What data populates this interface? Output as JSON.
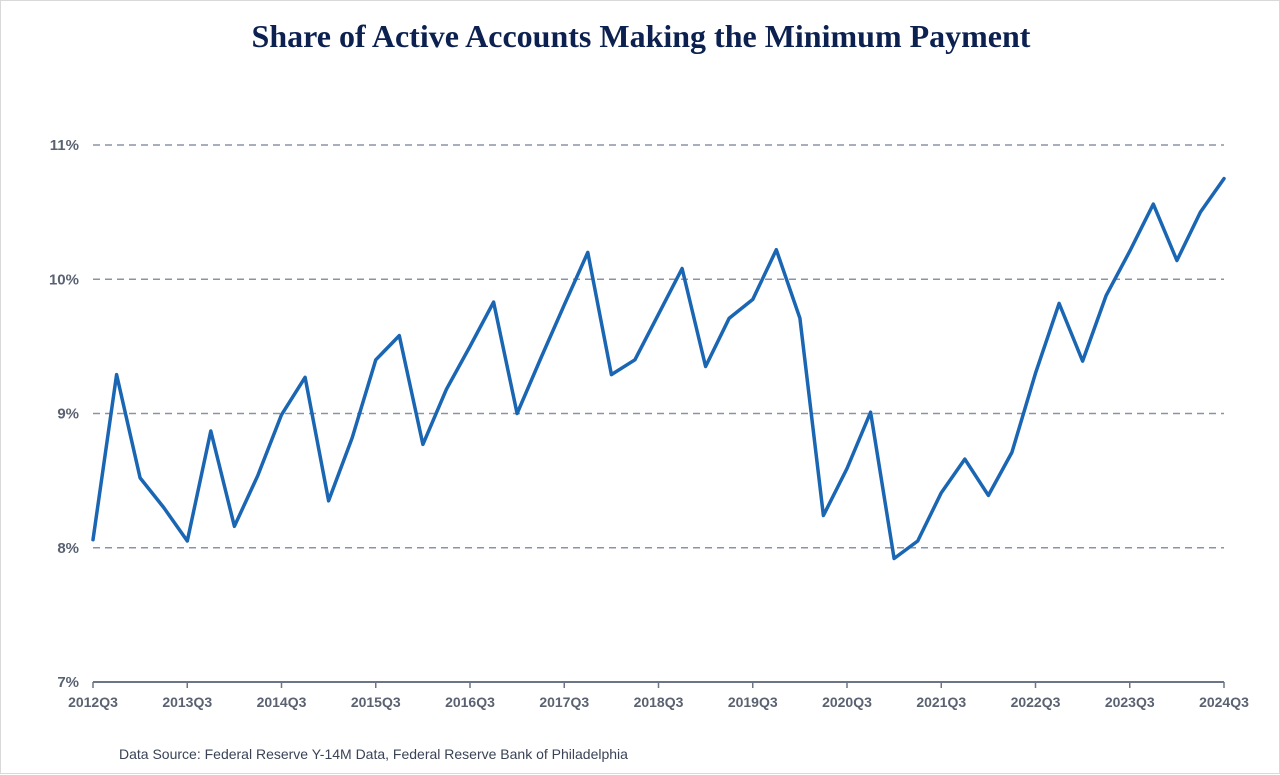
{
  "chart_data": {
    "type": "line",
    "title": "Share of Active Accounts Making the Minimum Payment",
    "xlabel": "",
    "ylabel": "",
    "ylim": [
      7,
      11
    ],
    "yticks": [
      7,
      8,
      9,
      10,
      11
    ],
    "ytick_labels": [
      "7%",
      "8%",
      "9%",
      "10%",
      "11%"
    ],
    "grid": true,
    "x_tick_labels": [
      "2012Q3",
      "2013Q3",
      "2014Q3",
      "2015Q3",
      "2016Q3",
      "2017Q3",
      "2018Q3",
      "2019Q3",
      "2020Q3",
      "2021Q3",
      "2022Q3",
      "2023Q3",
      "2024Q3"
    ],
    "series": [
      {
        "name": "Share of Active Accounts Making the Minimum Payment",
        "color": "#1a66b3",
        "values": [
          8.06,
          9.29,
          8.52,
          8.3,
          8.05,
          8.87,
          8.16,
          8.54,
          8.99,
          9.27,
          8.35,
          8.82,
          9.4,
          9.58,
          8.77,
          9.18,
          9.5,
          9.83,
          9.0,
          9.41,
          9.81,
          10.2,
          9.29,
          9.4,
          9.74,
          10.08,
          9.35,
          9.71,
          9.85,
          10.22,
          9.71,
          8.24,
          8.59,
          9.01,
          7.92,
          8.05,
          8.41,
          8.66,
          8.39,
          8.71,
          9.3,
          9.82,
          9.39,
          9.88,
          10.21,
          10.56,
          10.14,
          10.5,
          10.75
        ]
      }
    ],
    "source": "Data Source: Federal Reserve Y-14M Data, Federal Reserve Bank of Philadelphia"
  }
}
